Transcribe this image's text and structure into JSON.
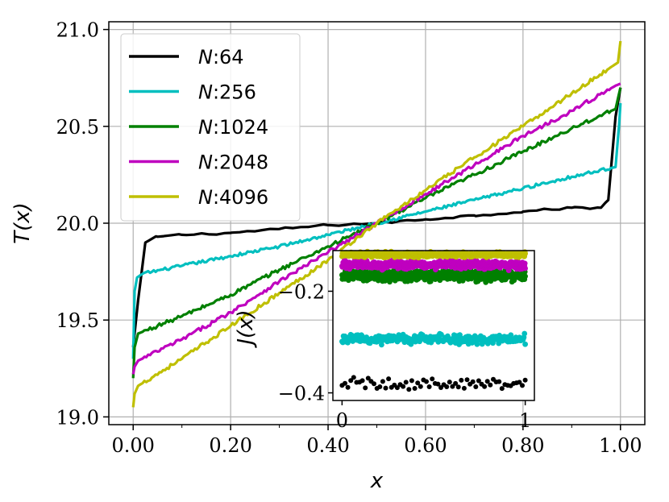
{
  "chart_data": [
    {
      "type": "line",
      "xlabel": "x",
      "ylabel": "T(x)",
      "xlim": [
        -0.05,
        1.05
      ],
      "ylim": [
        18.96,
        21.04
      ],
      "xticks": [
        0.0,
        0.2,
        0.4,
        0.6,
        0.8,
        1.0
      ],
      "xtick_labels": [
        "0.00",
        "0.20",
        "0.40",
        "0.60",
        "0.80",
        "1.00"
      ],
      "yticks": [
        19.0,
        19.5,
        20.0,
        20.5,
        21.0
      ],
      "ytick_labels": [
        "19.0",
        "19.5",
        "20.0",
        "20.5",
        "21.0"
      ],
      "grid": true,
      "legend_position": "top-left",
      "series": [
        {
          "name": "N:64",
          "legend_prefix": "N",
          "legend_suffix": ":64",
          "color": "#000000",
          "x": [
            0.0,
            0.01,
            0.025,
            0.05,
            0.1,
            0.2,
            0.3,
            0.4,
            0.5,
            0.6,
            0.7,
            0.8,
            0.9,
            0.96,
            0.975,
            0.99,
            1.0
          ],
          "y": [
            19.36,
            19.6,
            19.9,
            19.93,
            19.94,
            19.95,
            19.97,
            19.99,
            20.0,
            20.02,
            20.04,
            20.06,
            20.08,
            20.08,
            20.12,
            20.55,
            20.7
          ]
        },
        {
          "name": "N:256",
          "legend_prefix": "N",
          "legend_suffix": ":256",
          "color": "#00bfbf",
          "x": [
            0.0,
            0.003,
            0.008,
            0.02,
            0.1,
            0.2,
            0.3,
            0.4,
            0.5,
            0.6,
            0.7,
            0.8,
            0.9,
            0.99,
            0.997,
            1.0
          ],
          "y": [
            19.3,
            19.65,
            19.72,
            19.74,
            19.78,
            19.83,
            19.88,
            19.94,
            20.0,
            20.06,
            20.12,
            20.18,
            20.24,
            20.29,
            20.5,
            20.62
          ]
        },
        {
          "name": "N:1024",
          "legend_prefix": "N",
          "legend_suffix": ":1024",
          "color": "#008000",
          "x": [
            0.0,
            0.003,
            0.01,
            0.1,
            0.2,
            0.3,
            0.4,
            0.5,
            0.6,
            0.7,
            0.8,
            0.9,
            0.99,
            1.0
          ],
          "y": [
            19.2,
            19.36,
            19.43,
            19.52,
            19.63,
            19.76,
            19.88,
            20.0,
            20.13,
            20.25,
            20.37,
            20.49,
            20.59,
            20.7
          ]
        },
        {
          "name": "N:2048",
          "legend_prefix": "N",
          "legend_suffix": ":2048",
          "color": "#bf00bf",
          "x": [
            0.0,
            0.003,
            0.01,
            0.1,
            0.2,
            0.3,
            0.4,
            0.5,
            0.6,
            0.7,
            0.8,
            0.9,
            0.99,
            1.0
          ],
          "y": [
            19.22,
            19.26,
            19.29,
            19.4,
            19.54,
            19.7,
            19.85,
            20.0,
            20.15,
            20.3,
            20.45,
            20.58,
            20.71,
            20.72
          ]
        },
        {
          "name": "N:4096",
          "legend_prefix": "N",
          "legend_suffix": ":4096",
          "color": "#bfbf00",
          "x": [
            0.0,
            0.003,
            0.01,
            0.1,
            0.2,
            0.3,
            0.4,
            0.5,
            0.6,
            0.7,
            0.8,
            0.9,
            0.995,
            1.0
          ],
          "y": [
            19.05,
            19.12,
            19.16,
            19.3,
            19.47,
            19.64,
            19.81,
            20.0,
            20.17,
            20.34,
            20.5,
            20.67,
            20.83,
            20.94
          ]
        }
      ]
    },
    {
      "type": "scatter",
      "inset": true,
      "xlabel": "",
      "ylabel": "J(x)",
      "xlim": [
        -0.05,
        1.05
      ],
      "ylim": [
        -0.415,
        -0.12
      ],
      "xticks": [
        0,
        1
      ],
      "xtick_labels": [
        "0",
        "1"
      ],
      "yticks": [
        -0.2,
        -0.4
      ],
      "ytick_labels": [
        "−0.2",
        "−0.4"
      ],
      "series": [
        {
          "name": "N:64",
          "color": "#000000",
          "y_mean": -0.383,
          "spread": 0.013,
          "points": 64
        },
        {
          "name": "N:256",
          "color": "#00bfbf",
          "y_mean": -0.294,
          "spread": 0.009,
          "points": 256
        },
        {
          "name": "N:1024",
          "color": "#008000",
          "y_mean": -0.169,
          "spread": 0.011,
          "points": 512
        },
        {
          "name": "N:2048",
          "color": "#bf00bf",
          "y_mean": -0.148,
          "spread": 0.008,
          "points": 512
        },
        {
          "name": "N:4096",
          "color": "#bfbf00",
          "y_mean": -0.128,
          "spread": 0.005,
          "points": 512
        }
      ]
    }
  ]
}
